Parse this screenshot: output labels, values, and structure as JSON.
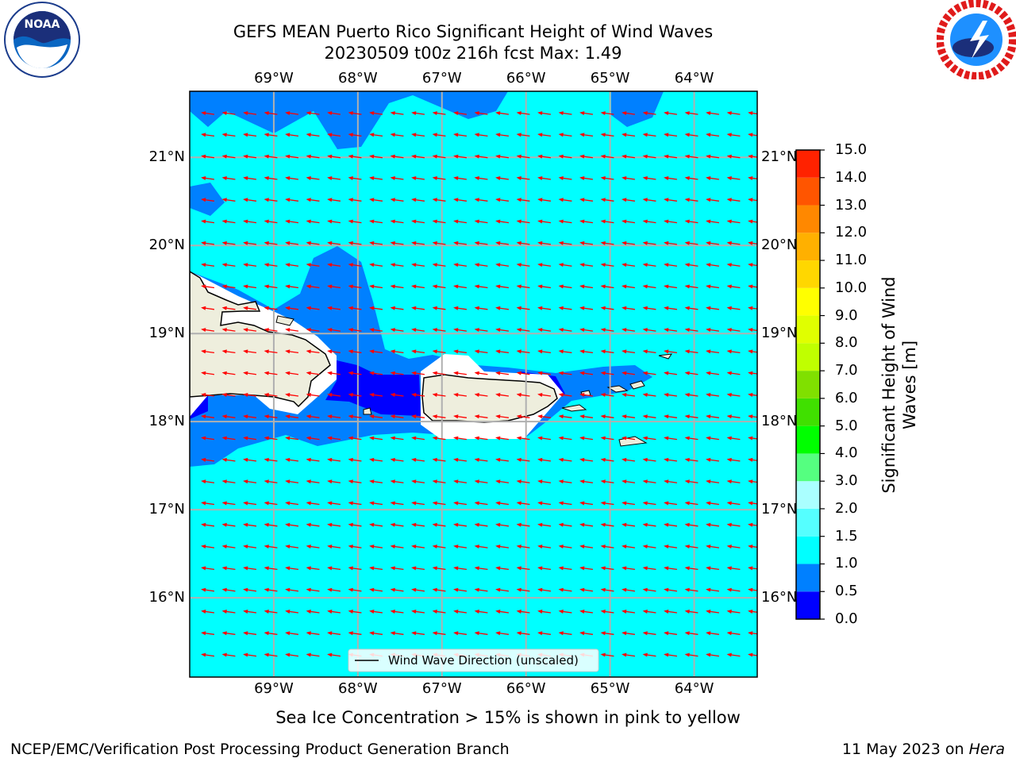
{
  "header": {
    "title_line1": "GEFS MEAN Puerto Rico Significant Height of Wind Waves",
    "title_line2": "20230509 t00z 216h fcst   Max: 1.49"
  },
  "logos": {
    "noaa_text": "NOAA",
    "noaa_ring": "NATIONAL OCEANIC AND ATMOSPHERIC ADMINISTRATION · U.S. DEPARTMENT OF COMMERCE",
    "nws_ring": "NATIONAL WEATHER SERVICE"
  },
  "map": {
    "lon_labels": [
      "69°W",
      "68°W",
      "67°W",
      "66°W",
      "65°W",
      "64°W"
    ],
    "lon_values": [
      -69,
      -68,
      -67,
      -66,
      -65,
      -64
    ],
    "lat_labels": [
      "21°N",
      "20°N",
      "19°N",
      "18°N",
      "17°N",
      "16°N"
    ],
    "lat_values": [
      21,
      20,
      19,
      18,
      17,
      16
    ],
    "extent": {
      "lon_min": -70,
      "lon_max": -63.25,
      "lat_min": 15.1,
      "lat_max": 21.75
    },
    "gridlines": true,
    "ocean_color": "#00ffff",
    "land_color": "#eeeedd",
    "arrow_color": "#ff0000",
    "arrow_direction": "toward west-southwest",
    "legend": {
      "label": "Wind Wave Direction (unscaled)",
      "placement": "bottom-center"
    }
  },
  "colorbar": {
    "label_line1": "Significant Height of Wind",
    "label_line2": "Waves [m]",
    "ticks": [
      "0.0",
      "0.5",
      "1.0",
      "1.5",
      "2.0",
      "3.0",
      "4.0",
      "5.0",
      "6.0",
      "7.0",
      "8.0",
      "9.0",
      "10.0",
      "11.0",
      "12.0",
      "13.0",
      "14.0",
      "15.0"
    ],
    "colors": [
      "#0000ff",
      "#0080ff",
      "#00ffff",
      "#55ffff",
      "#aaffff",
      "#55ff80",
      "#00ff00",
      "#40e000",
      "#80e000",
      "#c0ff00",
      "#e0ff00",
      "#ffff00",
      "#ffd700",
      "#ffb000",
      "#ff8800",
      "#ff5500",
      "#ff2200"
    ]
  },
  "footer": {
    "note": "Sea Ice Concentration > 15% is shown in pink to yellow",
    "left": "NCEP/EMC/Verification Post Processing Product Generation Branch",
    "right_prefix": "11 May 2023 on ",
    "right_italic": "Hera"
  }
}
